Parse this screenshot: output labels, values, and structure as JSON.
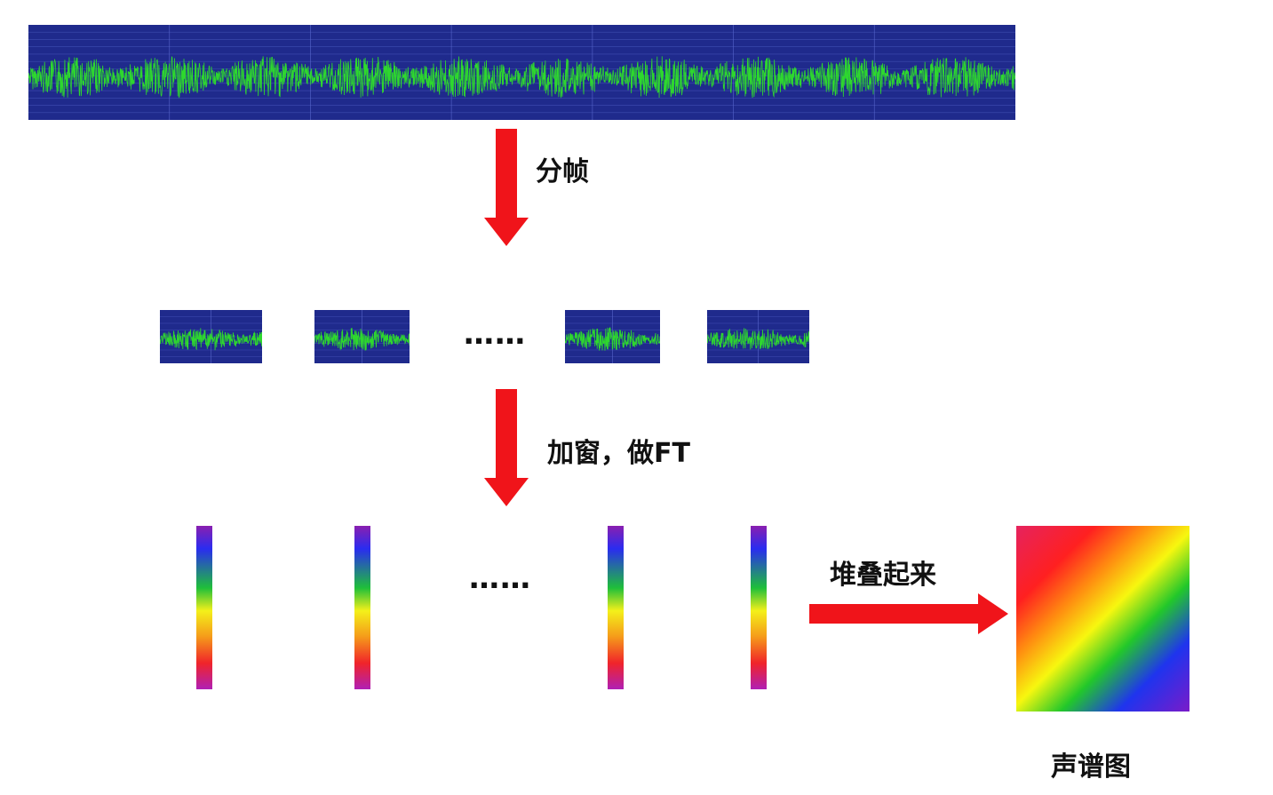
{
  "steps": {
    "framing": "分帧",
    "window_ft": "加窗，做FT",
    "stack": "堆叠起来"
  },
  "ellipsis": {
    "frames": "……",
    "spectra": "……"
  },
  "output_label": "声谱图",
  "colors": {
    "waveform_bg": "#1f2a8c",
    "waveform_line": "#2ed82e",
    "grid_line": "#5a6ad0",
    "arrow": "#f0141a"
  }
}
